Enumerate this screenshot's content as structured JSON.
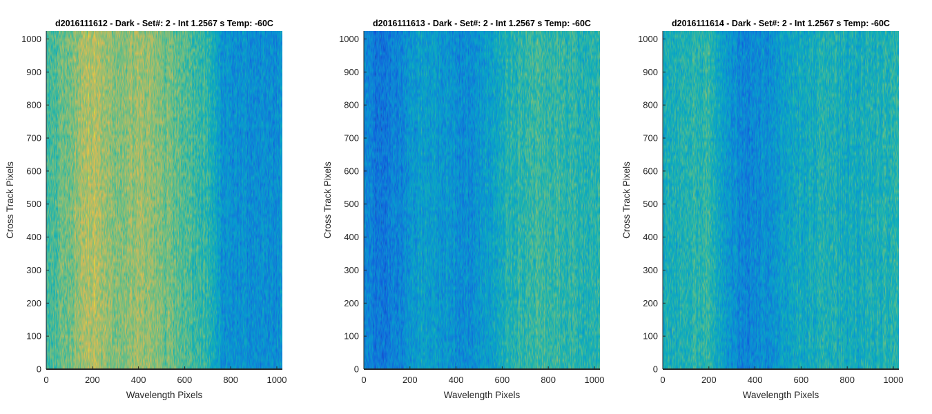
{
  "figure": {
    "background": "#ffffff"
  },
  "chart_data": [
    {
      "type": "heatmap",
      "title": "d2016111612 - Dark - Set#: 2 - Int 1.2567 s Temp: -60C",
      "xlabel": "Wavelength Pixels",
      "ylabel": "Cross Track Pixels",
      "xlim": [
        0,
        1024
      ],
      "ylim": [
        0,
        1024
      ],
      "xticks": [
        0,
        200,
        400,
        600,
        800,
        1000
      ],
      "yticks": [
        0,
        100,
        200,
        300,
        400,
        500,
        600,
        700,
        800,
        900,
        1000
      ],
      "colormap": "parula",
      "column_profile": {
        "x": [
          0,
          100,
          200,
          300,
          400,
          500,
          600,
          700,
          760,
          800,
          900,
          1024
        ],
        "level": [
          0.55,
          0.68,
          0.8,
          0.7,
          0.74,
          0.68,
          0.6,
          0.52,
          0.36,
          0.33,
          0.32,
          0.33
        ]
      }
    },
    {
      "type": "heatmap",
      "title": "d2016111613 - Dark - Set#: 2 - Int 1.2567 s Temp: -60C",
      "xlabel": "Wavelength Pixels",
      "ylabel": "Cross Track Pixels",
      "xlim": [
        0,
        1024
      ],
      "ylim": [
        0,
        1024
      ],
      "xticks": [
        0,
        200,
        400,
        600,
        800,
        1000
      ],
      "yticks": [
        0,
        100,
        200,
        300,
        400,
        500,
        600,
        700,
        800,
        900,
        1000
      ],
      "colormap": "parula",
      "column_profile": {
        "x": [
          0,
          60,
          150,
          250,
          350,
          450,
          550,
          650,
          750,
          850,
          950,
          1024
        ],
        "level": [
          0.3,
          0.22,
          0.28,
          0.4,
          0.36,
          0.3,
          0.4,
          0.52,
          0.55,
          0.54,
          0.5,
          0.52
        ]
      }
    },
    {
      "type": "heatmap",
      "title": "d2016111614 - Dark - Set#: 2 - Int 1.2567 s Temp: -60C",
      "xlabel": "Wavelength Pixels",
      "ylabel": "Cross Track Pixels",
      "xlim": [
        0,
        1024
      ],
      "ylim": [
        0,
        1024
      ],
      "xticks": [
        0,
        200,
        400,
        600,
        800,
        1000
      ],
      "yticks": [
        0,
        100,
        200,
        300,
        400,
        500,
        600,
        700,
        800,
        900,
        1000
      ],
      "colormap": "parula",
      "column_profile": {
        "x": [
          0,
          100,
          200,
          280,
          350,
          420,
          500,
          600,
          700,
          800,
          900,
          1024
        ],
        "level": [
          0.46,
          0.5,
          0.55,
          0.38,
          0.28,
          0.3,
          0.36,
          0.44,
          0.5,
          0.46,
          0.48,
          0.5
        ]
      }
    }
  ]
}
